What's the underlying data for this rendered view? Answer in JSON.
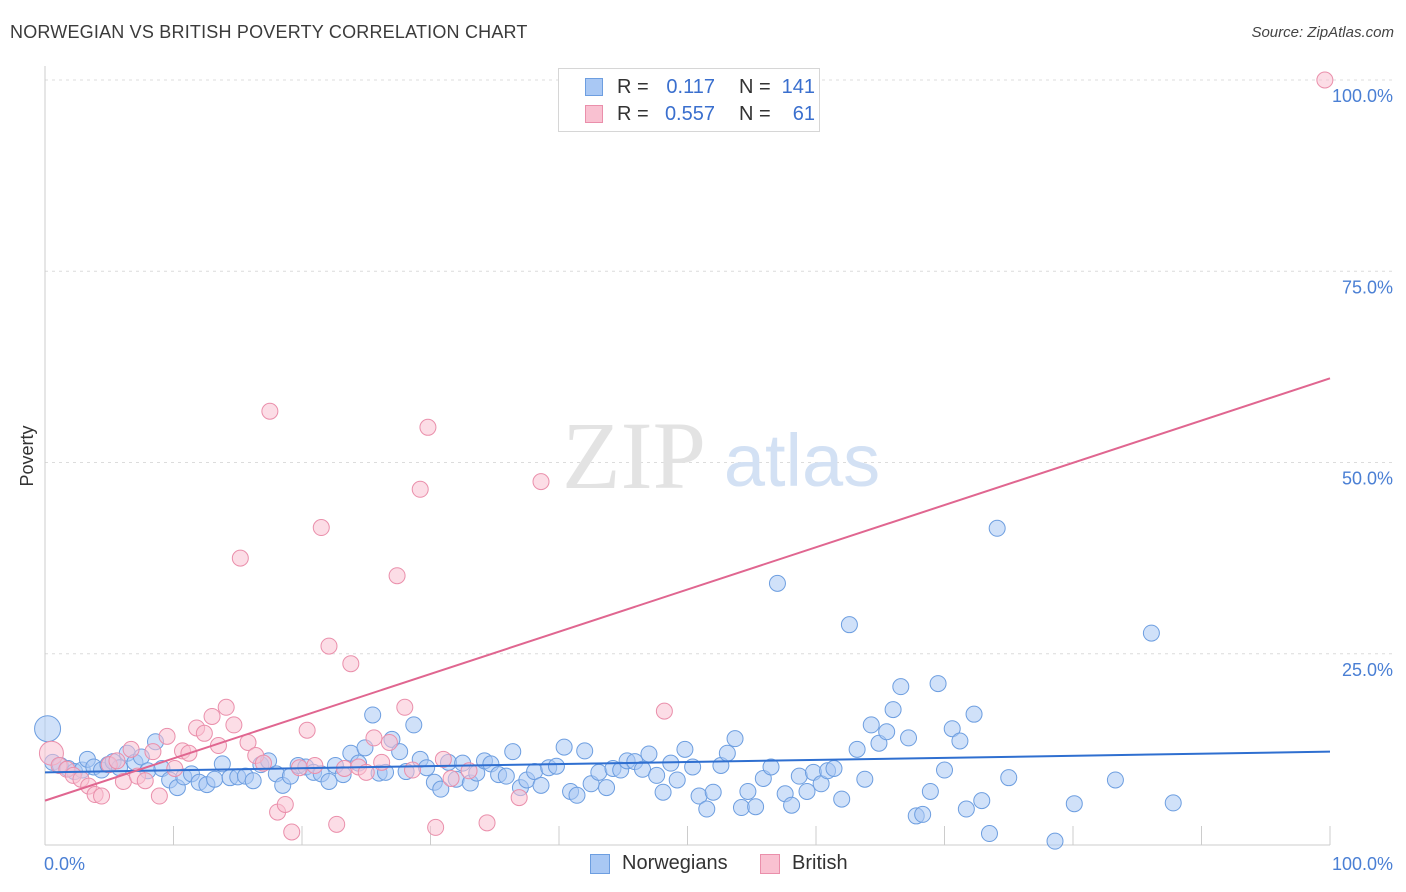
{
  "title": "NORWEGIAN VS BRITISH POVERTY CORRELATION CHART",
  "source": "Source: ZipAtlas.com",
  "watermark": {
    "zip": "ZIP",
    "atlas": "atlas"
  },
  "legend": {
    "rows": [
      {
        "r_label": "R =",
        "r_value": "0.117",
        "n_label": "N =",
        "n_value": "141",
        "color": "#a9c8f4",
        "border": "#6d9ee0"
      },
      {
        "r_label": "R =",
        "r_value": "0.557",
        "n_label": "N =",
        "n_value": "61",
        "color": "#f9c1d1",
        "border": "#ea8fab"
      }
    ]
  },
  "bottom_legend": [
    {
      "label": "Norwegians",
      "color": "#a9c8f4",
      "border": "#6d9ee0"
    },
    {
      "label": "British",
      "color": "#f9c1d1",
      "border": "#ea8fab"
    }
  ],
  "chart_data": {
    "type": "scatter",
    "title": "NORWEGIAN VS BRITISH POVERTY CORRELATION CHART",
    "xlabel": "",
    "ylabel": "Poverty",
    "xlim": [
      0,
      100
    ],
    "ylim": [
      0,
      100
    ],
    "x_tick_labels": [
      "0.0%",
      "100.0%"
    ],
    "y_tick_labels": [
      "25.0%",
      "50.0%",
      "75.0%",
      "100.0%"
    ],
    "y_ticks": [
      25,
      50,
      75,
      100
    ],
    "grid": true,
    "series": [
      {
        "name": "Norwegians",
        "color": "#6d9ee0",
        "fill": "#a9c8f4",
        "line_color": "#2f6fd0",
        "trend": {
          "x0": 0,
          "y0": 9.5,
          "x1": 100,
          "y1": 12.2
        },
        "points": [
          [
            0.2,
            15.2
          ],
          [
            0.6,
            10.8
          ],
          [
            1.2,
            10.4
          ],
          [
            1.8,
            10.0
          ],
          [
            2.3,
            9.6
          ],
          [
            2.9,
            9.8
          ],
          [
            3.3,
            11.2
          ],
          [
            3.8,
            10.2
          ],
          [
            4.4,
            9.8
          ],
          [
            4.9,
            10.5
          ],
          [
            5.3,
            10.9
          ],
          [
            5.8,
            10.1
          ],
          [
            6.4,
            12.0
          ],
          [
            7.0,
            10.8
          ],
          [
            7.5,
            11.5
          ],
          [
            8.0,
            9.7
          ],
          [
            8.6,
            13.5
          ],
          [
            9.1,
            10.0
          ],
          [
            9.7,
            8.5
          ],
          [
            10.3,
            7.5
          ],
          [
            10.8,
            8.9
          ],
          [
            11.4,
            9.3
          ],
          [
            12.0,
            8.2
          ],
          [
            12.6,
            7.9
          ],
          [
            13.2,
            8.6
          ],
          [
            13.8,
            10.6
          ],
          [
            14.4,
            8.8
          ],
          [
            15.0,
            8.9
          ],
          [
            15.6,
            9.0
          ],
          [
            16.2,
            8.4
          ],
          [
            16.8,
            10.5
          ],
          [
            17.4,
            11.0
          ],
          [
            18.0,
            9.3
          ],
          [
            18.5,
            7.8
          ],
          [
            19.1,
            9.0
          ],
          [
            19.7,
            10.4
          ],
          [
            20.3,
            10.2
          ],
          [
            20.9,
            9.5
          ],
          [
            21.5,
            9.3
          ],
          [
            22.1,
            8.3
          ],
          [
            22.6,
            10.4
          ],
          [
            23.2,
            9.2
          ],
          [
            23.8,
            12.0
          ],
          [
            24.4,
            10.7
          ],
          [
            24.9,
            12.7
          ],
          [
            25.5,
            17.0
          ],
          [
            26.0,
            9.4
          ],
          [
            26.5,
            9.5
          ],
          [
            27.0,
            13.8
          ],
          [
            27.6,
            12.2
          ],
          [
            28.1,
            9.6
          ],
          [
            28.7,
            15.7
          ],
          [
            29.2,
            11.2
          ],
          [
            29.7,
            10.1
          ],
          [
            30.3,
            8.2
          ],
          [
            30.8,
            7.3
          ],
          [
            31.4,
            10.8
          ],
          [
            32.0,
            8.6
          ],
          [
            32.5,
            10.7
          ],
          [
            33.1,
            8.1
          ],
          [
            33.6,
            9.4
          ],
          [
            34.2,
            11.0
          ],
          [
            34.7,
            10.6
          ],
          [
            35.3,
            9.2
          ],
          [
            35.9,
            9.0
          ],
          [
            36.4,
            12.2
          ],
          [
            37.0,
            7.5
          ],
          [
            37.5,
            8.5
          ],
          [
            38.1,
            9.6
          ],
          [
            38.6,
            7.8
          ],
          [
            39.2,
            10.1
          ],
          [
            39.8,
            10.3
          ],
          [
            40.4,
            12.8
          ],
          [
            40.9,
            7.0
          ],
          [
            41.4,
            6.5
          ],
          [
            42.0,
            12.3
          ],
          [
            42.5,
            8.0
          ],
          [
            43.1,
            9.5
          ],
          [
            43.7,
            7.5
          ],
          [
            44.2,
            10.0
          ],
          [
            44.8,
            9.8
          ],
          [
            45.3,
            11.0
          ],
          [
            45.9,
            10.9
          ],
          [
            46.5,
            9.9
          ],
          [
            47.0,
            11.9
          ],
          [
            47.6,
            9.1
          ],
          [
            48.1,
            6.9
          ],
          [
            48.7,
            10.7
          ],
          [
            49.2,
            8.5
          ],
          [
            49.8,
            12.5
          ],
          [
            50.4,
            10.2
          ],
          [
            50.9,
            6.4
          ],
          [
            51.5,
            4.7
          ],
          [
            52.0,
            6.9
          ],
          [
            52.6,
            10.4
          ],
          [
            53.1,
            12.0
          ],
          [
            53.7,
            13.9
          ],
          [
            54.2,
            4.9
          ],
          [
            54.7,
            7.0
          ],
          [
            55.3,
            5.0
          ],
          [
            55.9,
            8.7
          ],
          [
            56.5,
            10.2
          ],
          [
            57.0,
            34.2
          ],
          [
            57.6,
            6.7
          ],
          [
            58.1,
            5.2
          ],
          [
            58.7,
            9.0
          ],
          [
            59.3,
            7.0
          ],
          [
            59.8,
            9.5
          ],
          [
            60.4,
            8.0
          ],
          [
            60.9,
            9.7
          ],
          [
            61.4,
            10.0
          ],
          [
            62.0,
            6.0
          ],
          [
            62.6,
            28.8
          ],
          [
            63.2,
            12.5
          ],
          [
            63.8,
            8.6
          ],
          [
            64.3,
            15.7
          ],
          [
            64.9,
            13.3
          ],
          [
            65.5,
            14.8
          ],
          [
            66.0,
            17.7
          ],
          [
            66.6,
            20.7
          ],
          [
            67.2,
            14.0
          ],
          [
            67.8,
            3.8
          ],
          [
            68.3,
            4.0
          ],
          [
            68.9,
            7.0
          ],
          [
            69.5,
            21.1
          ],
          [
            70.0,
            9.8
          ],
          [
            70.6,
            15.2
          ],
          [
            71.2,
            13.6
          ],
          [
            71.7,
            4.7
          ],
          [
            72.3,
            17.1
          ],
          [
            72.9,
            5.8
          ],
          [
            73.5,
            1.5
          ],
          [
            74.1,
            41.4
          ],
          [
            75.0,
            8.8
          ],
          [
            78.6,
            0.5
          ],
          [
            80.1,
            5.4
          ],
          [
            83.3,
            8.5
          ],
          [
            86.1,
            27.7
          ],
          [
            87.8,
            5.5
          ]
        ]
      },
      {
        "name": "British",
        "color": "#ea8fab",
        "fill": "#f9c1d1",
        "line_color": "#e06690",
        "trend": {
          "x0": 0,
          "y0": 5.8,
          "x1": 100,
          "y1": 61.0
        },
        "points": [
          [
            0.5,
            12.0
          ],
          [
            1.1,
            10.4
          ],
          [
            1.7,
            9.9
          ],
          [
            2.2,
            9.1
          ],
          [
            2.8,
            8.6
          ],
          [
            3.4,
            7.7
          ],
          [
            3.9,
            6.6
          ],
          [
            4.4,
            6.4
          ],
          [
            5.0,
            10.5
          ],
          [
            5.6,
            11.0
          ],
          [
            6.1,
            8.3
          ],
          [
            6.7,
            12.5
          ],
          [
            7.2,
            9.0
          ],
          [
            7.8,
            8.4
          ],
          [
            8.4,
            12.2
          ],
          [
            8.9,
            6.4
          ],
          [
            9.5,
            14.2
          ],
          [
            10.1,
            10.0
          ],
          [
            10.7,
            12.3
          ],
          [
            11.2,
            12.0
          ],
          [
            11.8,
            15.3
          ],
          [
            12.4,
            14.6
          ],
          [
            13.0,
            16.8
          ],
          [
            13.5,
            13.0
          ],
          [
            14.1,
            18.0
          ],
          [
            14.7,
            15.7
          ],
          [
            15.2,
            37.5
          ],
          [
            15.8,
            13.4
          ],
          [
            16.4,
            11.7
          ],
          [
            17.0,
            10.7
          ],
          [
            17.5,
            56.7
          ],
          [
            18.1,
            4.3
          ],
          [
            18.7,
            5.3
          ],
          [
            19.2,
            1.7
          ],
          [
            19.8,
            10.1
          ],
          [
            20.4,
            15.0
          ],
          [
            21.0,
            10.4
          ],
          [
            21.5,
            41.5
          ],
          [
            22.1,
            26.0
          ],
          [
            22.7,
            2.7
          ],
          [
            23.3,
            10.0
          ],
          [
            23.8,
            23.7
          ],
          [
            24.4,
            10.2
          ],
          [
            25.0,
            9.5
          ],
          [
            25.6,
            14.0
          ],
          [
            26.2,
            10.8
          ],
          [
            26.8,
            13.4
          ],
          [
            27.4,
            35.2
          ],
          [
            28.0,
            18.0
          ],
          [
            28.6,
            9.8
          ],
          [
            29.2,
            46.5
          ],
          [
            29.8,
            54.6
          ],
          [
            30.4,
            2.3
          ],
          [
            31.0,
            11.2
          ],
          [
            31.6,
            8.7
          ],
          [
            33.0,
            9.7
          ],
          [
            34.4,
            2.9
          ],
          [
            36.9,
            6.2
          ],
          [
            38.6,
            47.5
          ],
          [
            48.2,
            17.5
          ],
          [
            99.6,
            100.0
          ]
        ]
      }
    ]
  }
}
